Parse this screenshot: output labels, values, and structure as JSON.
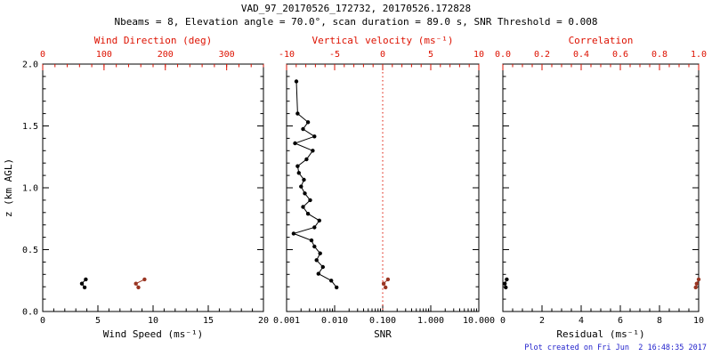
{
  "header": {
    "title": "VAD_97_20170526_172732, 20170526.172828",
    "subtitle": "Nbeams = 8, Elevation angle = 70.0°, scan duration = 89.0 s, SNR Threshold = 0.008"
  },
  "footer": {
    "created_text": "Plot created on Fri Jun  2 16:48:35 2017",
    "color": "#2222cc"
  },
  "colors": {
    "frame": "#000000",
    "secondary_axis": "#dd1100",
    "primary_series": "#000000",
    "secondary_series": "#993522",
    "background": "#ffffff"
  },
  "y_axis": {
    "label": "z (km AGL)",
    "range": [
      0.0,
      2.0
    ],
    "major_ticks": [
      0.0,
      0.5,
      1.0,
      1.5,
      2.0
    ],
    "tick_labels": [
      "0.0",
      "0.5",
      "1.0",
      "1.5",
      "2.0"
    ],
    "minor_per_major": 5
  },
  "chart_data": [
    {
      "type": "scatter",
      "panel": "wind",
      "ylabel": "z (km AGL)",
      "ylim": [
        0,
        2
      ],
      "grid": false,
      "bottom_axis": {
        "label": "Wind Speed (ms⁻¹)",
        "scale": "linear",
        "range": [
          0,
          20
        ],
        "major_ticks": [
          0,
          5,
          10,
          15,
          20
        ],
        "tick_labels": [
          "0",
          "5",
          "10",
          "15",
          "20"
        ],
        "minor_per_major": 5
      },
      "top_axis": {
        "label": "Wind Direction (deg)",
        "scale": "linear",
        "range": [
          0,
          360
        ],
        "major_ticks": [
          0,
          100,
          200,
          300
        ],
        "tick_labels": [
          "0",
          "100",
          "200",
          "300"
        ],
        "minor_per_major": 5
      },
      "series": [
        {
          "name": "wind-speed",
          "axis": "bottom",
          "color": "#000000",
          "marker": "dot",
          "points": [
            [
              3.8,
              0.195
            ],
            [
              3.55,
              0.225
            ],
            [
              3.9,
              0.26
            ]
          ]
        },
        {
          "name": "wind-direction",
          "axis": "top",
          "color": "#993522",
          "marker": "dot",
          "points": [
            [
              156,
              0.195
            ],
            [
              152,
              0.225
            ],
            [
              166,
              0.26
            ]
          ]
        }
      ]
    },
    {
      "type": "scatter",
      "panel": "snr",
      "ylim": [
        0,
        2
      ],
      "grid": false,
      "bottom_axis": {
        "label": "SNR",
        "scale": "log",
        "range": [
          0.001,
          10.0
        ],
        "major_ticks": [
          0.001,
          0.01,
          0.1,
          1.0,
          10.0
        ],
        "tick_labels": [
          "0.001",
          "0.010",
          "0.100",
          "1.000",
          "10.000"
        ]
      },
      "top_axis": {
        "label": "Vertical velocity (ms⁻¹)",
        "scale": "linear",
        "range": [
          -10,
          10
        ],
        "major_ticks": [
          -10,
          -5,
          0,
          5,
          10
        ],
        "tick_labels": [
          "-10",
          "-5",
          "0",
          "5",
          "10"
        ],
        "minor_per_major": 5
      },
      "reference_line": {
        "axis": "top",
        "value": 0.0,
        "style": "dotted"
      },
      "series": [
        {
          "name": "snr-profile",
          "axis": "bottom",
          "color": "#000000",
          "marker": "dot",
          "points": [
            [
              0.011,
              0.195
            ],
            [
              0.0085,
              0.25
            ],
            [
              0.0046,
              0.305
            ],
            [
              0.0057,
              0.36
            ],
            [
              0.0042,
              0.415
            ],
            [
              0.005,
              0.47
            ],
            [
              0.0038,
              0.525
            ],
            [
              0.0033,
              0.575
            ],
            [
              0.0014,
              0.63
            ],
            [
              0.0038,
              0.68
            ],
            [
              0.0048,
              0.735
            ],
            [
              0.0028,
              0.79
            ],
            [
              0.0022,
              0.845
            ],
            [
              0.0031,
              0.9
            ],
            [
              0.0024,
              0.955
            ],
            [
              0.002,
              1.01
            ],
            [
              0.0023,
              1.065
            ],
            [
              0.0018,
              1.12
            ],
            [
              0.0017,
              1.175
            ],
            [
              0.0026,
              1.23
            ],
            [
              0.0035,
              1.3
            ],
            [
              0.0015,
              1.36
            ],
            [
              0.0038,
              1.415
            ],
            [
              0.0022,
              1.475
            ],
            [
              0.0028,
              1.53
            ],
            [
              0.0017,
              1.6
            ],
            [
              0.0016,
              1.86
            ]
          ]
        },
        {
          "name": "vertical-velocity",
          "axis": "top",
          "color": "#993522",
          "marker": "dot",
          "points": [
            [
              0.3,
              0.195
            ],
            [
              0.1,
              0.225
            ],
            [
              0.55,
              0.26
            ]
          ]
        }
      ]
    },
    {
      "type": "scatter",
      "panel": "residual",
      "ylim": [
        0,
        2
      ],
      "grid": false,
      "bottom_axis": {
        "label": "Residual (ms⁻¹)",
        "scale": "linear",
        "range": [
          0,
          10
        ],
        "major_ticks": [
          0,
          2,
          4,
          6,
          8,
          10
        ],
        "tick_labels": [
          "0",
          "2",
          "4",
          "6",
          "8",
          "10"
        ],
        "minor_per_major": 4
      },
      "top_axis": {
        "label": "Correlation",
        "scale": "linear",
        "range": [
          0.0,
          1.0
        ],
        "major_ticks": [
          0.0,
          0.2,
          0.4,
          0.6,
          0.8,
          1.0
        ],
        "tick_labels": [
          "0.0",
          "0.2",
          "0.4",
          "0.6",
          "0.8",
          "1.0"
        ],
        "minor_per_major": 4
      },
      "series": [
        {
          "name": "residual",
          "axis": "bottom",
          "color": "#000000",
          "marker": "dot",
          "points": [
            [
              0.15,
              0.195
            ],
            [
              0.1,
              0.225
            ],
            [
              0.2,
              0.26
            ]
          ]
        },
        {
          "name": "correlation",
          "axis": "top",
          "color": "#993522",
          "marker": "dot",
          "points": [
            [
              0.985,
              0.195
            ],
            [
              0.99,
              0.225
            ],
            [
              1.0,
              0.26
            ]
          ]
        }
      ]
    }
  ]
}
